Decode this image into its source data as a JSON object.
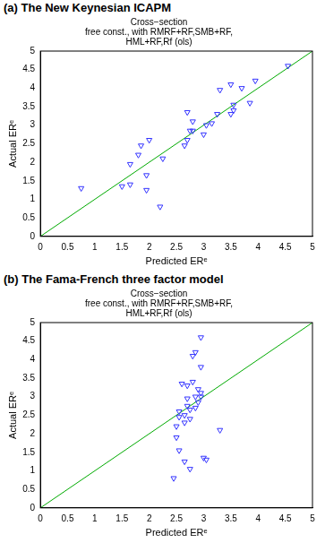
{
  "chart_data": [
    {
      "type": "scatter",
      "caption": "(a) The New Keynesian ICAPM",
      "title": [
        "Cross−section",
        "free const., with RMRF+RF,SMB+RF,",
        "HML+RF,Rf (ols)"
      ],
      "x_label": "Predicted ERᵉ",
      "y_label": "Actual ERᵉ",
      "xlim": [
        0,
        5
      ],
      "ylim": [
        0,
        5
      ],
      "xticks": [
        0,
        0.5,
        1,
        1.5,
        2,
        2.5,
        3,
        3.5,
        4,
        4.5,
        5
      ],
      "yticks": [
        0,
        0.5,
        1,
        1.5,
        2,
        2.5,
        3,
        3.5,
        4,
        4.5,
        5
      ],
      "grid": false,
      "series": [
        {
          "type": "scatter",
          "marker": "triangle-down",
          "color": "#3333ff",
          "x": [
            0.75,
            1.5,
            1.65,
            1.65,
            1.8,
            1.85,
            1.95,
            1.95,
            2.0,
            2.2,
            2.25,
            2.65,
            2.7,
            2.7,
            2.75,
            2.8,
            2.8,
            3.0,
            3.05,
            3.15,
            3.25,
            3.3,
            3.5,
            3.5,
            3.55,
            3.55,
            3.7,
            3.85,
            3.95,
            4.55
          ],
          "values": [
            1.3,
            1.35,
            1.4,
            1.95,
            2.2,
            2.45,
            1.65,
            1.25,
            2.6,
            0.8,
            2.1,
            2.45,
            3.35,
            2.6,
            2.85,
            3.1,
            2.85,
            2.75,
            3.0,
            3.05,
            3.3,
            3.95,
            4.1,
            3.3,
            3.4,
            3.55,
            4.0,
            3.6,
            4.2,
            4.6
          ]
        },
        {
          "type": "line",
          "line_style": "solid",
          "color": "#00aa00",
          "x": [
            0,
            5
          ],
          "values": [
            0,
            5
          ]
        }
      ]
    },
    {
      "type": "scatter",
      "caption": "(b) The Fama-French three factor model",
      "title": [
        "Cross−section",
        "free const., with RMRF+RF,SMB+RF,",
        "HML+RF,Rf (ols)"
      ],
      "x_label": "Predicted ERᵉ",
      "y_label": "Actual ERᵉ",
      "xlim": [
        0,
        5
      ],
      "ylim": [
        0,
        5
      ],
      "xticks": [
        0,
        0.5,
        1,
        1.5,
        2,
        2.5,
        3,
        3.5,
        4,
        4.5,
        5
      ],
      "yticks": [
        0,
        0.5,
        1,
        1.5,
        2,
        2.5,
        3,
        3.5,
        4,
        4.5,
        5
      ],
      "grid": false,
      "series": [
        {
          "type": "scatter",
          "marker": "triangle-down",
          "color": "#3333ff",
          "x": [
            2.45,
            2.55,
            2.5,
            2.5,
            2.55,
            2.55,
            2.6,
            2.65,
            2.65,
            2.7,
            2.7,
            2.7,
            2.75,
            2.8,
            2.8,
            2.85,
            2.85,
            2.85,
            2.75,
            2.9,
            2.9,
            2.95,
            2.95,
            2.95,
            3.0,
            3.05,
            2.95,
            3.3,
            2.65,
            2.75
          ],
          "values": [
            0.8,
            1.55,
            1.9,
            2.2,
            2.45,
            2.6,
            3.35,
            2.5,
            1.25,
            3.3,
            2.95,
            2.75,
            1.05,
            3.4,
            4.1,
            4.2,
            3.0,
            2.7,
            2.4,
            3.2,
            2.85,
            3.8,
            4.6,
            3.0,
            1.35,
            1.3,
            3.1,
            2.1,
            2.3,
            2.65
          ]
        },
        {
          "type": "line",
          "line_style": "solid",
          "color": "#00aa00",
          "x": [
            0,
            5
          ],
          "values": [
            0,
            5
          ]
        }
      ]
    }
  ]
}
